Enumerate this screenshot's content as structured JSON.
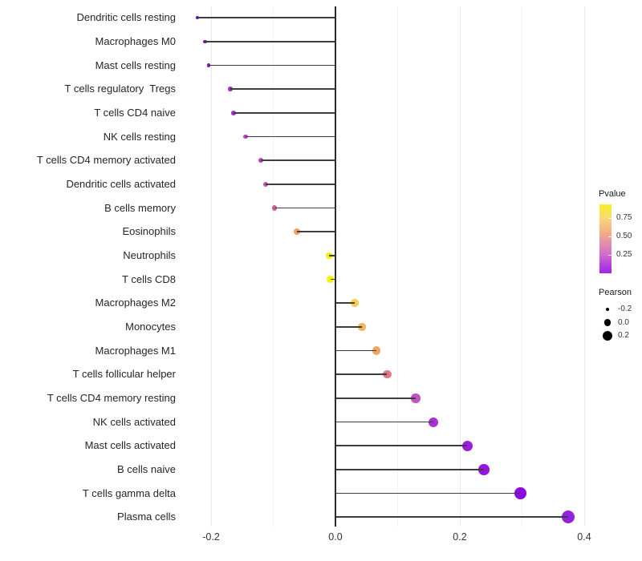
{
  "chart_data": {
    "type": "scatter",
    "subtype": "lollipop",
    "orientation": "horizontal",
    "title": "",
    "xlabel": "",
    "ylabel": "",
    "grid": "vertical-only",
    "zero_line": true,
    "xlim": [
      -0.233,
      0.486
    ],
    "x_ticks": [
      {
        "value": -0.2,
        "label": "-0.2"
      },
      {
        "value": 0.0,
        "label": "0.0"
      },
      {
        "value": 0.2,
        "label": "0.2"
      },
      {
        "value": 0.4,
        "label": "0.4"
      }
    ],
    "x_minor_ticks": [
      -0.1,
      0.1,
      0.3
    ],
    "categories": [
      "Dendritic cells resting",
      "Macrophages M0",
      "Mast cells resting",
      "T cells regulatory  Tregs",
      "T cells CD4 naive",
      "NK cells resting",
      "T cells CD4 memory activated",
      "Dendritic cells activated",
      "B cells memory",
      "Eosinophils",
      "Neutrophils",
      "T cells CD8",
      "Macrophages M2",
      "Monocytes",
      "Macrophages M1",
      "T cells follicular helper",
      "T cells CD4 memory resting",
      "NK cells activated",
      "Mast cells activated",
      "B cells naive",
      "T cells gamma delta",
      "Plasma cells"
    ],
    "series": [
      {
        "name": "Pearson",
        "values": [
          -0.222,
          -0.21,
          -0.204,
          -0.169,
          -0.164,
          -0.145,
          -0.12,
          -0.112,
          -0.098,
          -0.062,
          -0.01,
          -0.008,
          0.031,
          0.043,
          0.066,
          0.083,
          0.129,
          0.157,
          0.212,
          0.239,
          0.297,
          0.374
        ]
      },
      {
        "name": "Pvalue (approx, read from color scale)",
        "values": [
          0.06,
          0.08,
          0.09,
          0.17,
          0.18,
          0.24,
          0.3,
          0.32,
          0.38,
          0.6,
          0.92,
          0.93,
          0.75,
          0.65,
          0.58,
          0.47,
          0.27,
          0.13,
          0.07,
          0.05,
          0.02,
          0.01
        ]
      }
    ],
    "point_colors": [
      "#6b0cc0",
      "#7e12cc",
      "#8114cd",
      "#a62fca",
      "#a936c8",
      "#b746c4",
      "#bb45bc",
      "#c250b3",
      "#c9609e",
      "#efa368",
      "#f9f011",
      "#faf207",
      "#f9ce4e",
      "#f4b45a",
      "#f0a464",
      "#e57680",
      "#c253c2",
      "#ac2fd4",
      "#9c1edb",
      "#9615de",
      "#8c0be1",
      "#9321e0"
    ],
    "stem_color": "#3d3d3d",
    "legend_position": "right"
  },
  "legend": {
    "pvalue": {
      "title": "Pvalue",
      "ticks": [
        "0.75",
        "0.50",
        "0.25"
      ],
      "tick_values": [
        0.75,
        0.5,
        0.25
      ],
      "bar_top_value": 0.94,
      "bar_bottom_value": 0.0,
      "gradient_top_to_bottom": [
        "#f6f11f",
        "#fbd877",
        "#f2ac87",
        "#e18bae",
        "#d26fc9",
        "#b33bde",
        "#a227e4"
      ]
    },
    "pearson": {
      "title": "Pearson",
      "sizes": [
        "-0.2",
        "0.0",
        "0.2"
      ],
      "size_values": [
        -0.2,
        0.0,
        0.2
      ],
      "dot_color": "#000000"
    }
  }
}
